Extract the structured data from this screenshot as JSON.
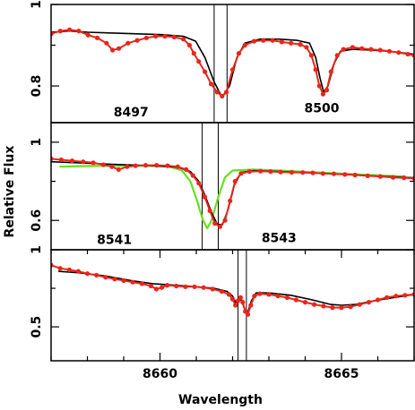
{
  "figure": {
    "xlabel": "Wavelength",
    "ylabel": "Relative Flux"
  },
  "colors": {
    "observed": "#e8261a",
    "model": "#000000",
    "model_alt": "#66e01e",
    "frame": "#000000"
  },
  "chart_data": [
    {
      "type": "line",
      "panel": "top",
      "xlim": [
        8495.6,
        8501.5
      ],
      "ylim": [
        0.71,
        1.0
      ],
      "yticks": [
        {
          "value": 1.0,
          "label": "1"
        },
        {
          "value": 0.8,
          "label": "0.8"
        }
      ],
      "annotations": [
        {
          "text": "8497",
          "x": 8496.9,
          "y": 0.725
        },
        {
          "text": "8500",
          "x": 8500.0,
          "y": 0.735
        }
      ],
      "vlines": [
        8498.25,
        8498.46
      ],
      "series": [
        {
          "role": "observed",
          "points": [
            [
              8495.6,
              0.928
            ],
            [
              8495.75,
              0.935
            ],
            [
              8495.9,
              0.938
            ],
            [
              8496.05,
              0.935
            ],
            [
              8496.2,
              0.925
            ],
            [
              8496.35,
              0.918
            ],
            [
              8496.5,
              0.905
            ],
            [
              8496.6,
              0.888
            ],
            [
              8496.7,
              0.892
            ],
            [
              8496.85,
              0.905
            ],
            [
              8497.0,
              0.912
            ],
            [
              8497.15,
              0.918
            ],
            [
              8497.3,
              0.922
            ],
            [
              8497.45,
              0.922
            ],
            [
              8497.6,
              0.92
            ],
            [
              8497.75,
              0.915
            ],
            [
              8497.85,
              0.9
            ],
            [
              8497.92,
              0.88
            ],
            [
              8498.0,
              0.86
            ],
            [
              8498.1,
              0.835
            ],
            [
              8498.2,
              0.805
            ],
            [
              8498.3,
              0.785
            ],
            [
              8498.38,
              0.775
            ],
            [
              8498.45,
              0.785
            ],
            [
              8498.55,
              0.84
            ],
            [
              8498.65,
              0.88
            ],
            [
              8498.75,
              0.9
            ],
            [
              8498.9,
              0.91
            ],
            [
              8499.05,
              0.912
            ],
            [
              8499.2,
              0.912
            ],
            [
              8499.35,
              0.908
            ],
            [
              8499.5,
              0.905
            ],
            [
              8499.65,
              0.902
            ],
            [
              8499.75,
              0.895
            ],
            [
              8499.83,
              0.875
            ],
            [
              8499.9,
              0.84
            ],
            [
              8499.96,
              0.8
            ],
            [
              8500.02,
              0.78
            ],
            [
              8500.08,
              0.79
            ],
            [
              8500.15,
              0.835
            ],
            [
              8500.25,
              0.875
            ],
            [
              8500.35,
              0.89
            ],
            [
              8500.5,
              0.895
            ],
            [
              8500.65,
              0.892
            ],
            [
              8500.8,
              0.89
            ],
            [
              8500.95,
              0.888
            ],
            [
              8501.1,
              0.885
            ],
            [
              8501.25,
              0.882
            ],
            [
              8501.4,
              0.878
            ],
            [
              8501.5,
              0.875
            ]
          ]
        },
        {
          "role": "model",
          "points": [
            [
              8495.6,
              0.932
            ],
            [
              8495.9,
              0.935
            ],
            [
              8496.2,
              0.932
            ],
            [
              8496.6,
              0.93
            ],
            [
              8497.0,
              0.928
            ],
            [
              8497.4,
              0.926
            ],
            [
              8497.75,
              0.922
            ],
            [
              8497.95,
              0.91
            ],
            [
              8498.1,
              0.87
            ],
            [
              8498.25,
              0.81
            ],
            [
              8498.38,
              0.772
            ],
            [
              8498.5,
              0.8
            ],
            [
              8498.62,
              0.87
            ],
            [
              8498.75,
              0.905
            ],
            [
              8499.0,
              0.915
            ],
            [
              8499.3,
              0.915
            ],
            [
              8499.6,
              0.912
            ],
            [
              8499.8,
              0.905
            ],
            [
              8499.9,
              0.87
            ],
            [
              8499.97,
              0.82
            ],
            [
              8500.03,
              0.785
            ],
            [
              8500.1,
              0.8
            ],
            [
              8500.2,
              0.855
            ],
            [
              8500.3,
              0.885
            ],
            [
              8500.5,
              0.89
            ],
            [
              8500.8,
              0.888
            ],
            [
              8501.1,
              0.885
            ],
            [
              8501.5,
              0.878
            ]
          ]
        }
      ]
    },
    {
      "type": "line",
      "panel": "middle",
      "xlim": [
        8540.3,
        8544.6
      ],
      "ylim": [
        0.45,
        1.1
      ],
      "yticks": [
        {
          "value": 1.0,
          "label": "1"
        },
        {
          "value": 0.6,
          "label": "0.6"
        }
      ],
      "annotations": [
        {
          "text": "8541",
          "x": 8541.05,
          "y": 0.48
        },
        {
          "text": "8543",
          "x": 8543.0,
          "y": 0.49
        }
      ],
      "vlines": [
        8542.09,
        8542.28
      ],
      "series": [
        {
          "role": "observed",
          "points": [
            [
              8540.3,
              0.915
            ],
            [
              8540.42,
              0.91
            ],
            [
              8540.55,
              0.905
            ],
            [
              8540.68,
              0.9
            ],
            [
              8540.8,
              0.895
            ],
            [
              8540.92,
              0.885
            ],
            [
              8541.02,
              0.875
            ],
            [
              8541.1,
              0.86
            ],
            [
              8541.2,
              0.875
            ],
            [
              8541.3,
              0.88
            ],
            [
              8541.42,
              0.882
            ],
            [
              8541.55,
              0.882
            ],
            [
              8541.68,
              0.88
            ],
            [
              8541.8,
              0.875
            ],
            [
              8541.9,
              0.86
            ],
            [
              8541.98,
              0.83
            ],
            [
              8542.05,
              0.79
            ],
            [
              8542.12,
              0.72
            ],
            [
              8542.18,
              0.65
            ],
            [
              8542.24,
              0.585
            ],
            [
              8542.3,
              0.568
            ],
            [
              8542.36,
              0.6
            ],
            [
              8542.42,
              0.7
            ],
            [
              8542.48,
              0.8
            ],
            [
              8542.55,
              0.84
            ],
            [
              8542.65,
              0.85
            ],
            [
              8542.78,
              0.852
            ],
            [
              8542.9,
              0.85
            ],
            [
              8543.02,
              0.848
            ],
            [
              8543.15,
              0.846
            ],
            [
              8543.28,
              0.845
            ],
            [
              8543.4,
              0.843
            ],
            [
              8543.52,
              0.84
            ],
            [
              8543.65,
              0.838
            ],
            [
              8543.78,
              0.835
            ],
            [
              8543.9,
              0.832
            ],
            [
              8544.05,
              0.828
            ],
            [
              8544.2,
              0.825
            ],
            [
              8544.35,
              0.82
            ],
            [
              8544.48,
              0.818
            ],
            [
              8544.6,
              0.815
            ]
          ]
        },
        {
          "role": "model",
          "points": [
            [
              8540.3,
              0.9
            ],
            [
              8540.7,
              0.893
            ],
            [
              8541.1,
              0.886
            ],
            [
              8541.5,
              0.88
            ],
            [
              8541.8,
              0.872
            ],
            [
              8541.95,
              0.85
            ],
            [
              8542.05,
              0.8
            ],
            [
              8542.13,
              0.72
            ],
            [
              8542.2,
              0.64
            ],
            [
              8542.27,
              0.58
            ],
            [
              8542.33,
              0.578
            ],
            [
              8542.4,
              0.66
            ],
            [
              8542.47,
              0.78
            ],
            [
              8542.55,
              0.845
            ],
            [
              8542.7,
              0.855
            ],
            [
              8543.0,
              0.85
            ],
            [
              8543.4,
              0.843
            ],
            [
              8543.8,
              0.835
            ],
            [
              8544.2,
              0.826
            ],
            [
              8544.6,
              0.818
            ]
          ]
        },
        {
          "role": "model_alt",
          "points": [
            [
              8540.4,
              0.875
            ],
            [
              8540.7,
              0.878
            ],
            [
              8541.0,
              0.88
            ],
            [
              8541.4,
              0.88
            ],
            [
              8541.7,
              0.876
            ],
            [
              8541.85,
              0.855
            ],
            [
              8541.95,
              0.8
            ],
            [
              8542.03,
              0.7
            ],
            [
              8542.1,
              0.6
            ],
            [
              8542.15,
              0.56
            ],
            [
              8542.2,
              0.6
            ],
            [
              8542.28,
              0.72
            ],
            [
              8542.36,
              0.82
            ],
            [
              8542.45,
              0.855
            ],
            [
              8542.7,
              0.86
            ],
            [
              8543.0,
              0.855
            ],
            [
              8543.4,
              0.847
            ],
            [
              8543.8,
              0.838
            ],
            [
              8544.2,
              0.83
            ],
            [
              8544.5,
              0.825
            ]
          ]
        }
      ]
    },
    {
      "type": "line",
      "panel": "bottom",
      "xlim": [
        8657.0,
        8667.0
      ],
      "ylim": [
        0.28,
        1.0
      ],
      "yticks": [
        {
          "value": 1.0,
          "label": "1"
        },
        {
          "value": 0.5,
          "label": "0.5"
        }
      ],
      "xticks": [
        {
          "value": 8660,
          "label": "8660"
        },
        {
          "value": 8665,
          "label": "8665"
        }
      ],
      "vlines": [
        8662.15,
        8662.38
      ],
      "series": [
        {
          "role": "observed",
          "points": [
            [
              8657.0,
              0.9
            ],
            [
              8657.25,
              0.88
            ],
            [
              8657.5,
              0.87
            ],
            [
              8657.75,
              0.86
            ],
            [
              8658.0,
              0.845
            ],
            [
              8658.25,
              0.835
            ],
            [
              8658.5,
              0.822
            ],
            [
              8658.75,
              0.81
            ],
            [
              8659.0,
              0.8
            ],
            [
              8659.25,
              0.79
            ],
            [
              8659.5,
              0.78
            ],
            [
              8659.75,
              0.765
            ],
            [
              8659.9,
              0.745
            ],
            [
              8660.05,
              0.755
            ],
            [
              8660.2,
              0.77
            ],
            [
              8660.45,
              0.765
            ],
            [
              8660.7,
              0.76
            ],
            [
              8660.95,
              0.76
            ],
            [
              8661.2,
              0.755
            ],
            [
              8661.45,
              0.745
            ],
            [
              8661.7,
              0.73
            ],
            [
              8661.9,
              0.71
            ],
            [
              8662.0,
              0.68
            ],
            [
              8662.08,
              0.64
            ],
            [
              8662.15,
              0.67
            ],
            [
              8662.22,
              0.69
            ],
            [
              8662.28,
              0.66
            ],
            [
              8662.35,
              0.6
            ],
            [
              8662.42,
              0.58
            ],
            [
              8662.5,
              0.64
            ],
            [
              8662.6,
              0.7
            ],
            [
              8662.75,
              0.715
            ],
            [
              8663.0,
              0.71
            ],
            [
              8663.25,
              0.7
            ],
            [
              8663.5,
              0.69
            ],
            [
              8663.75,
              0.675
            ],
            [
              8664.0,
              0.66
            ],
            [
              8664.25,
              0.645
            ],
            [
              8664.5,
              0.635
            ],
            [
              8664.75,
              0.625
            ],
            [
              8665.0,
              0.625
            ],
            [
              8665.25,
              0.63
            ],
            [
              8665.5,
              0.645
            ],
            [
              8665.75,
              0.66
            ],
            [
              8666.0,
              0.675
            ],
            [
              8666.25,
              0.69
            ],
            [
              8666.5,
              0.7
            ],
            [
              8666.75,
              0.705
            ],
            [
              8667.0,
              0.71
            ]
          ]
        },
        {
          "role": "model",
          "points": [
            [
              8657.2,
              0.86
            ],
            [
              8657.8,
              0.85
            ],
            [
              8658.5,
              0.83
            ],
            [
              8659.2,
              0.8
            ],
            [
              8659.8,
              0.78
            ],
            [
              8660.4,
              0.77
            ],
            [
              8661.0,
              0.76
            ],
            [
              8661.5,
              0.75
            ],
            [
              8661.85,
              0.73
            ],
            [
              8662.0,
              0.7
            ],
            [
              8662.08,
              0.66
            ],
            [
              8662.15,
              0.68
            ],
            [
              8662.25,
              0.67
            ],
            [
              8662.35,
              0.6
            ],
            [
              8662.42,
              0.595
            ],
            [
              8662.52,
              0.67
            ],
            [
              8662.65,
              0.72
            ],
            [
              8663.0,
              0.72
            ],
            [
              8663.6,
              0.705
            ],
            [
              8664.2,
              0.675
            ],
            [
              8664.7,
              0.645
            ],
            [
              8665.0,
              0.64
            ],
            [
              8665.4,
              0.645
            ],
            [
              8665.8,
              0.665
            ],
            [
              8666.3,
              0.685
            ],
            [
              8667.0,
              0.71
            ]
          ]
        }
      ]
    }
  ]
}
